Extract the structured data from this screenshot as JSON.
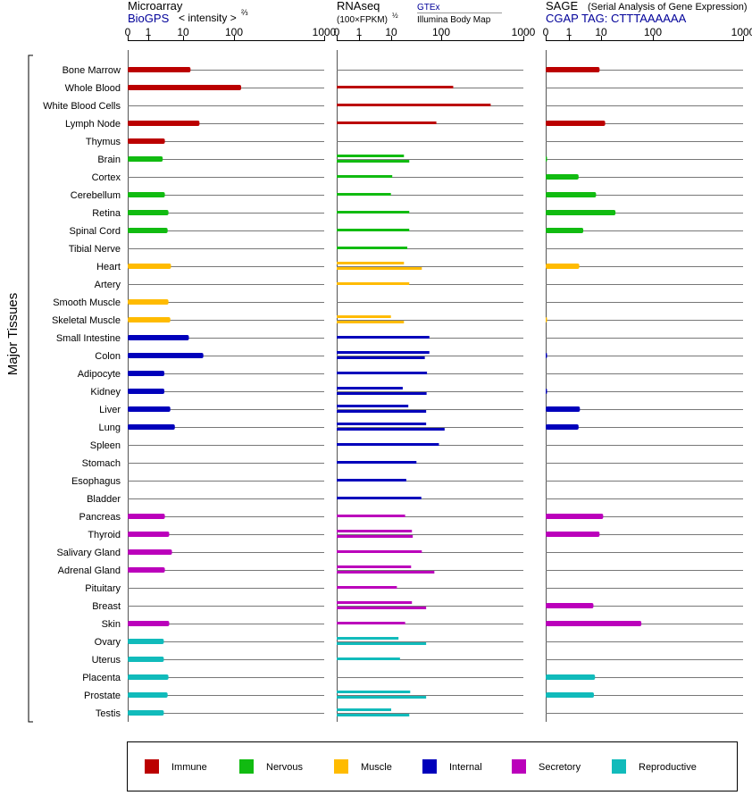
{
  "headers": {
    "microarray": {
      "title": "Microarray",
      "source": "BioGPS",
      "unit": "< intensity >",
      "unit_exp": "⅔"
    },
    "rnaseq": {
      "title": "RNAseq",
      "unit": "(100×FPKM)",
      "unit_exp": "½",
      "source1": "GTEx",
      "source2": "Illumina Body Map"
    },
    "sage": {
      "title": "SAGE",
      "subtitle": "(Serial Analysis of Gene Expression)",
      "tag": "CGAP TAG: CTTTAAAAAA"
    }
  },
  "y_axis_label": "Major Tissues",
  "axis_ticks": [
    "0",
    "1",
    "10",
    "100",
    "1000"
  ],
  "colors": {
    "immune": "#bb0000",
    "nervous": "#11bb11",
    "muscle": "#ffbb00",
    "internal": "#0000bb",
    "secretory": "#bb00bb",
    "reproductive": "#11bbbb",
    "title_blue": "#000099"
  },
  "legend": [
    {
      "key": "immune",
      "label": "Immune"
    },
    {
      "key": "nervous",
      "label": "Nervous"
    },
    {
      "key": "muscle",
      "label": "Muscle"
    },
    {
      "key": "internal",
      "label": "Internal"
    },
    {
      "key": "secretory",
      "label": "Secretory"
    },
    {
      "key": "reproductive",
      "label": "Reproductive"
    }
  ],
  "chart_data": {
    "type": "bar",
    "orientation": "horizontal",
    "x_scale": "custom log-like (0, 1, 10, 100, 1000)",
    "xlim": [
      0,
      1000
    ],
    "categories": [
      "Bone Marrow",
      "Whole Blood",
      "White Blood Cells",
      "Lymph Node",
      "Thymus",
      "Brain",
      "Cortex",
      "Cerebellum",
      "Retina",
      "Spinal Cord",
      "Tibial Nerve",
      "Heart",
      "Artery",
      "Smooth Muscle",
      "Skeletal Muscle",
      "Small Intestine",
      "Colon",
      "Adipocyte",
      "Kidney",
      "Liver",
      "Lung",
      "Spleen",
      "Stomach",
      "Esophagus",
      "Bladder",
      "Pancreas",
      "Thyroid",
      "Salivary Gland",
      "Adrenal Gland",
      "Pituitary",
      "Breast",
      "Skin",
      "Ovary",
      "Uterus",
      "Placenta",
      "Prostate",
      "Testis"
    ],
    "groups": [
      "immune",
      "immune",
      "immune",
      "immune",
      "immune",
      "nervous",
      "nervous",
      "nervous",
      "nervous",
      "nervous",
      "nervous",
      "muscle",
      "muscle",
      "muscle",
      "muscle",
      "internal",
      "internal",
      "internal",
      "internal",
      "internal",
      "internal",
      "internal",
      "internal",
      "internal",
      "internal",
      "secretory",
      "secretory",
      "secretory",
      "secretory",
      "secretory",
      "secretory",
      "secretory",
      "reproductive",
      "reproductive",
      "reproductive",
      "reproductive",
      "reproductive"
    ],
    "series": [
      {
        "name": "Microarray",
        "values": [
          14,
          120,
          null,
          21,
          3,
          2.6,
          null,
          3,
          3.8,
          3.6,
          null,
          4.5,
          null,
          3.8,
          4.3,
          13,
          25,
          2.9,
          2.9,
          4.3,
          5.8,
          null,
          null,
          null,
          null,
          3,
          4,
          4.8,
          3,
          null,
          null,
          4,
          2.8,
          2.8,
          3.8,
          3.6,
          2.8
        ]
      },
      {
        "name": "RNAseq GTEx",
        "values": [
          null,
          null,
          null,
          null,
          null,
          18,
          null,
          null,
          null,
          null,
          null,
          18,
          null,
          null,
          9.8,
          null,
          58,
          null,
          17,
          22,
          50,
          null,
          null,
          null,
          null,
          null,
          26,
          null,
          25,
          null,
          26,
          null,
          14,
          null,
          null,
          24,
          10
        ]
      },
      {
        "name": "RNAseq Illumina Body Map",
        "values": [
          null,
          140,
          400,
          80,
          null,
          23,
          10.5,
          9.8,
          23,
          23,
          21,
          41,
          23,
          null,
          18,
          58,
          47,
          52,
          51,
          50,
          110,
          90,
          32,
          20,
          40,
          19,
          27,
          41,
          73,
          13,
          50,
          19,
          50,
          15,
          null,
          50,
          23
        ]
      },
      {
        "name": "SAGE",
        "values": [
          9,
          null,
          null,
          12,
          null,
          0.02,
          2,
          7,
          19,
          2.8,
          null,
          2.1,
          null,
          null,
          0.01,
          null,
          0.03,
          null,
          0.03,
          2.2,
          2,
          null,
          null,
          null,
          null,
          11,
          9,
          null,
          null,
          null,
          5.8,
          60,
          null,
          null,
          6.5,
          6,
          null
        ]
      }
    ]
  }
}
